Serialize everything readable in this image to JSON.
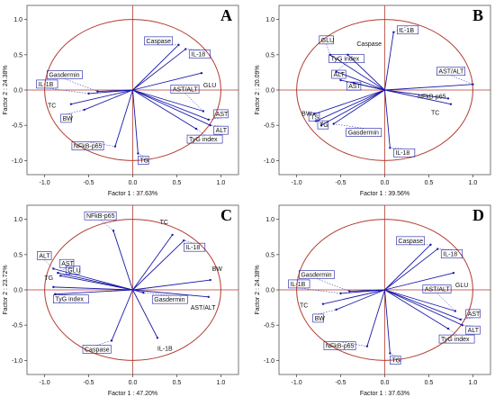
{
  "colors": {
    "circle": "#b03a2e",
    "vector": "#1a1aa8",
    "axis": "#b03a2e",
    "frame": "#555555",
    "label_box": "#1a1aa8"
  },
  "chart_data": [
    {
      "type": "scatter",
      "panel": "A",
      "xlabel": "Factor 1 : 37.63%",
      "ylabel": "Factor 2 : 24.38%",
      "xlim": [
        -1.2,
        1.2
      ],
      "ylim": [
        -1.2,
        1.2
      ],
      "xticks": [
        "-1.0",
        "-0.5",
        "0.0",
        "0.5",
        "1.0"
      ],
      "yticks": [
        "1.0",
        "0.5",
        "0.0",
        "-0.5",
        "-1.0"
      ],
      "unit_circle": true,
      "vectors": [
        {
          "label": "Caspase",
          "x": 0.52,
          "y": 0.64,
          "boxed": true
        },
        {
          "label": "IL-18",
          "x": 0.6,
          "y": 0.58,
          "boxed": true
        },
        {
          "label": "GLU",
          "x": 0.78,
          "y": 0.24,
          "boxed": false
        },
        {
          "label": "Gasdermin",
          "x": -0.4,
          "y": -0.02,
          "boxed": true
        },
        {
          "label": "IL-1B",
          "x": -0.5,
          "y": -0.05,
          "boxed": true
        },
        {
          "label": "TC",
          "x": -0.7,
          "y": -0.2,
          "boxed": false
        },
        {
          "label": "BW",
          "x": -0.55,
          "y": -0.28,
          "boxed": true
        },
        {
          "label": "AST/ALT",
          "x": 0.8,
          "y": -0.3,
          "boxed": true
        },
        {
          "label": "AST",
          "x": 0.86,
          "y": -0.42,
          "boxed": true
        },
        {
          "label": "ALT",
          "x": 0.88,
          "y": -0.5,
          "boxed": true
        },
        {
          "label": "TyG index",
          "x": 0.72,
          "y": -0.55,
          "boxed": true
        },
        {
          "label": "NFkB-p65",
          "x": -0.2,
          "y": -0.8,
          "boxed": true
        },
        {
          "label": "TG",
          "x": 0.06,
          "y": -0.9,
          "boxed": true
        }
      ]
    },
    {
      "type": "scatter",
      "panel": "B",
      "xlabel": "Factor 1 : 39.56%",
      "ylabel": "Factor 2 : 20.09%",
      "xlim": [
        -1.2,
        1.2
      ],
      "ylim": [
        -1.2,
        1.2
      ],
      "xticks": [
        "-1.0",
        "-0.5",
        "0.0",
        "0.5",
        "1.0"
      ],
      "yticks": [
        "1.0",
        "0.5",
        "0.0",
        "-0.5",
        "-1.0"
      ],
      "unit_circle": true,
      "vectors": [
        {
          "label": "IL-1B",
          "x": 0.1,
          "y": 0.82,
          "boxed": true
        },
        {
          "label": "GLU",
          "x": -0.62,
          "y": 0.5,
          "boxed": true
        },
        {
          "label": "Caspase",
          "x": -0.42,
          "y": 0.5,
          "boxed": false
        },
        {
          "label": "TyG index",
          "x": -0.55,
          "y": 0.26,
          "boxed": true
        },
        {
          "label": "ALT",
          "x": -0.5,
          "y": 0.14,
          "boxed": true
        },
        {
          "label": "AST",
          "x": -0.35,
          "y": 0.1,
          "boxed": true
        },
        {
          "label": "AST/ALT",
          "x": 1.0,
          "y": 0.08,
          "boxed": true
        },
        {
          "label": "NFkB-p65",
          "x": 0.72,
          "y": -0.12,
          "boxed": false
        },
        {
          "label": "TC",
          "x": 0.75,
          "y": -0.2,
          "boxed": false
        },
        {
          "label": "BW",
          "x": -0.8,
          "y": -0.34,
          "boxed": false
        },
        {
          "label": "TS",
          "x": -0.78,
          "y": -0.44,
          "boxed": true
        },
        {
          "label": "TG",
          "x": -0.72,
          "y": -0.5,
          "boxed": true
        },
        {
          "label": "Gasdermin",
          "x": -0.58,
          "y": -0.48,
          "boxed": true
        },
        {
          "label": "IL-18",
          "x": 0.06,
          "y": -0.82,
          "boxed": true
        }
      ]
    },
    {
      "type": "scatter",
      "panel": "C",
      "xlabel": "Factor 1 : 47.20%",
      "ylabel": "Factor 2 : 23.72%",
      "xlim": [
        -1.2,
        1.2
      ],
      "ylim": [
        -1.2,
        1.2
      ],
      "xticks": [
        "-1.0",
        "-0.5",
        "0.0",
        "0.5",
        "1.0"
      ],
      "yticks": [
        "1.0",
        "0.5",
        "0.0",
        "-0.5",
        "-1.0"
      ],
      "unit_circle": true,
      "vectors": [
        {
          "label": "NFkB-p65",
          "x": -0.22,
          "y": 0.84,
          "boxed": true
        },
        {
          "label": "TC",
          "x": 0.45,
          "y": 0.78,
          "boxed": false
        },
        {
          "label": "IL-18",
          "x": 0.58,
          "y": 0.7,
          "boxed": true
        },
        {
          "label": "BW",
          "x": 0.88,
          "y": 0.14,
          "boxed": false
        },
        {
          "label": "ALT",
          "x": -0.9,
          "y": 0.3,
          "boxed": true
        },
        {
          "label": "AST",
          "x": -0.85,
          "y": 0.24,
          "boxed": true
        },
        {
          "label": "GLU",
          "x": -0.82,
          "y": 0.2,
          "boxed": true
        },
        {
          "label": "TG",
          "x": -0.9,
          "y": 0.04,
          "boxed": false
        },
        {
          "label": "TyG index",
          "x": -0.88,
          "y": -0.06,
          "boxed": true
        },
        {
          "label": "Gasdermin",
          "x": 0.12,
          "y": -0.04,
          "boxed": true
        },
        {
          "label": "AST/ALT",
          "x": 0.86,
          "y": -0.1,
          "boxed": false
        },
        {
          "label": "Caspase",
          "x": -0.24,
          "y": -0.72,
          "boxed": true
        },
        {
          "label": "IL-1B",
          "x": 0.28,
          "y": -0.68,
          "boxed": false
        }
      ]
    },
    {
      "type": "scatter",
      "panel": "D",
      "xlabel": "Factor 1 : 37.63%",
      "ylabel": "Factor 2 : 24.38%",
      "xlim": [
        -1.2,
        1.2
      ],
      "ylim": [
        -1.2,
        1.2
      ],
      "xticks": [
        "-1.0",
        "-0.5",
        "0.0",
        "0.5",
        "1.0"
      ],
      "yticks": [
        "1.0",
        "0.5",
        "0.0",
        "-0.5",
        "-1.0"
      ],
      "unit_circle": true,
      "vectors": [
        {
          "label": "Caspase",
          "x": 0.52,
          "y": 0.64,
          "boxed": true
        },
        {
          "label": "IL-18",
          "x": 0.6,
          "y": 0.58,
          "boxed": true
        },
        {
          "label": "GLU",
          "x": 0.78,
          "y": 0.24,
          "boxed": false
        },
        {
          "label": "Gasdermin",
          "x": -0.4,
          "y": -0.02,
          "boxed": true
        },
        {
          "label": "IL-1B",
          "x": -0.5,
          "y": -0.05,
          "boxed": true
        },
        {
          "label": "TC",
          "x": -0.7,
          "y": -0.2,
          "boxed": false
        },
        {
          "label": "BW",
          "x": -0.55,
          "y": -0.28,
          "boxed": true
        },
        {
          "label": "AST/ALT",
          "x": 0.8,
          "y": -0.3,
          "boxed": true
        },
        {
          "label": "AST",
          "x": 0.86,
          "y": -0.42,
          "boxed": true
        },
        {
          "label": "ALT",
          "x": 0.88,
          "y": -0.5,
          "boxed": true
        },
        {
          "label": "TyG index",
          "x": 0.72,
          "y": -0.55,
          "boxed": true
        },
        {
          "label": "NFkB-p65",
          "x": -0.2,
          "y": -0.8,
          "boxed": true
        },
        {
          "label": "TG",
          "x": 0.06,
          "y": -0.9,
          "boxed": true
        }
      ]
    }
  ]
}
